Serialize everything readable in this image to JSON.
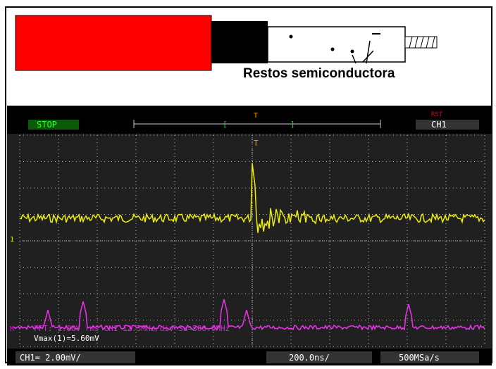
{
  "diagram": {
    "label": "Restos semiconductora"
  },
  "scope": {
    "status": "STOP",
    "trigger_marker": "T",
    "trigger_mode": "RST",
    "channel": "CH1",
    "channel_marker": "1",
    "math_marker": "M",
    "fft_info": "FFT: 1.00V rms CH1 12.5MHz/div Sa=500.0MHz",
    "measurement": "Vmax(1)=5.60mV",
    "ch1_scale": "CH1= 2.00mV/",
    "timebase": "200.0ns/",
    "sample_rate": "500MSa/s"
  }
}
